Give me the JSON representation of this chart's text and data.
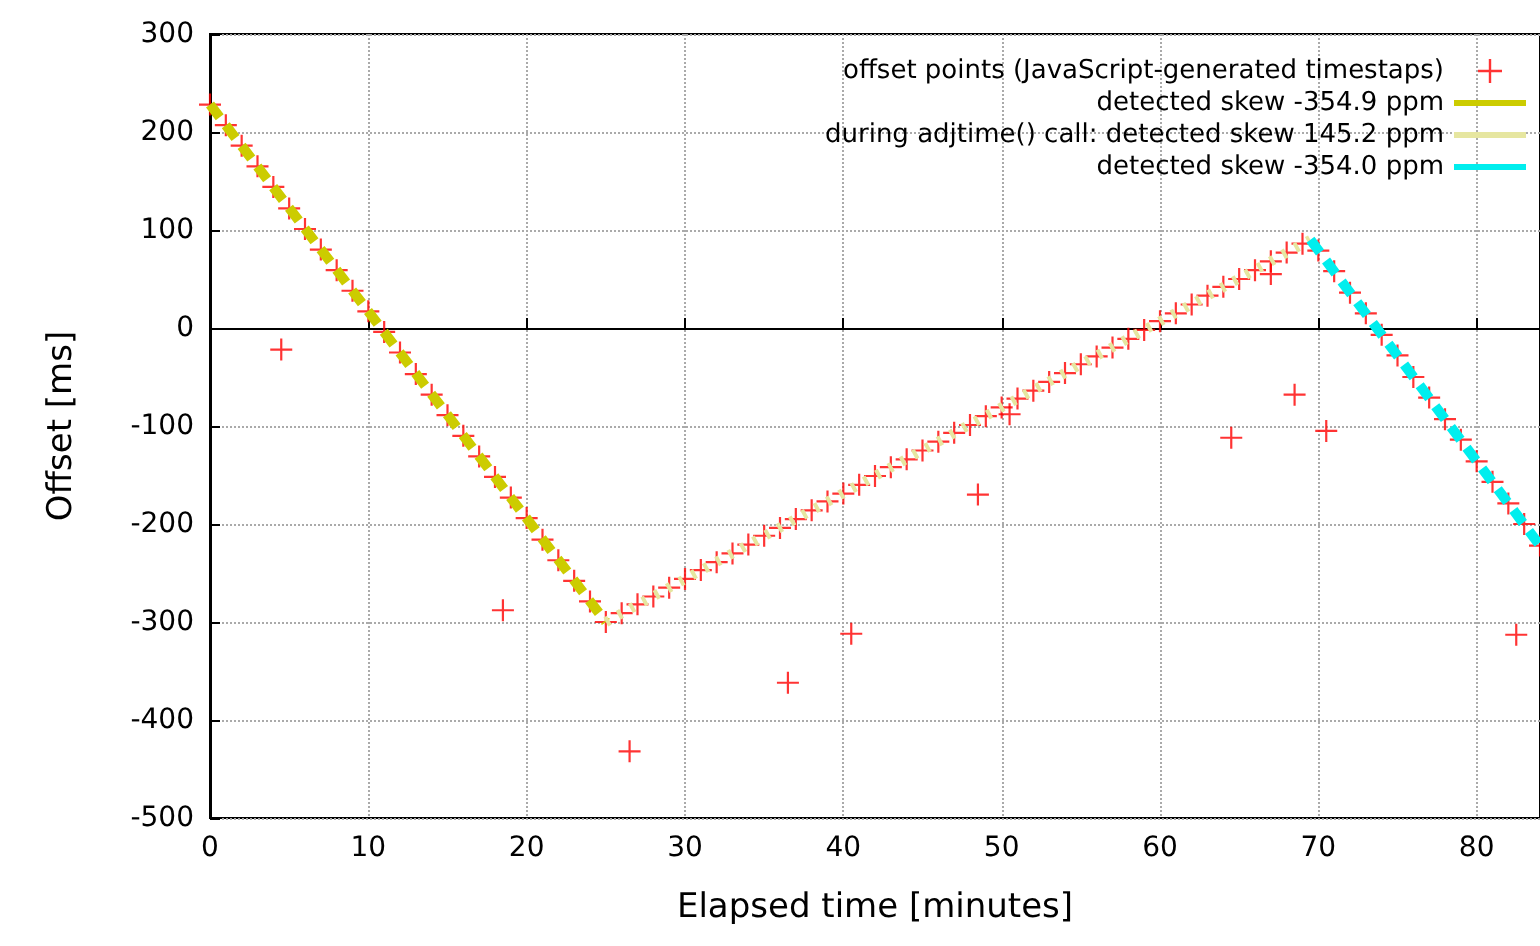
{
  "chart_data": {
    "type": "scatter",
    "xlabel": "Elapsed time [minutes]",
    "ylabel": "Offset [ms]",
    "xlim": [
      0,
      84
    ],
    "xticks": [
      0,
      10,
      20,
      30,
      40,
      50,
      60,
      70,
      80
    ],
    "ylim": [
      -500,
      300
    ],
    "yticks": [
      -500,
      -400,
      -300,
      -200,
      -100,
      0,
      100,
      200,
      300
    ],
    "grid": true,
    "legend": "top right",
    "series": [
      {
        "name": "offset points (JavaScript-generated timestaps)",
        "marker": "cross",
        "color": "#ff0000",
        "x": [
          0,
          1,
          2,
          3,
          4,
          5,
          6,
          7,
          8,
          9,
          10,
          11,
          12,
          13,
          14,
          15,
          16,
          17,
          18,
          19,
          20,
          21,
          22,
          23,
          24,
          25,
          26,
          27,
          28,
          29,
          30,
          31,
          32,
          33,
          34,
          35,
          36,
          37,
          38,
          39,
          40,
          41,
          42,
          43,
          44,
          45,
          46,
          47,
          48,
          49,
          50,
          51,
          52,
          53,
          54,
          55,
          56,
          57,
          58,
          59,
          60,
          61,
          62,
          63,
          64,
          65,
          66,
          67,
          68,
          69,
          70,
          71,
          72,
          73,
          74,
          75,
          76,
          77,
          78,
          79,
          80,
          81,
          82,
          83,
          84,
          4.5,
          18.5,
          26.5,
          36.5,
          40.5,
          48.5,
          50.5,
          64.5,
          67,
          68.5,
          70.5,
          82.5
        ],
        "values": [
          228,
          207,
          186,
          165,
          144,
          122,
          101,
          80,
          59,
          38,
          17,
          -4,
          -25,
          -47,
          -68,
          -89,
          -110,
          -131,
          -152,
          -173,
          -194,
          -216,
          -237,
          -258,
          -279,
          -300,
          -291,
          -282,
          -274,
          -265,
          -256,
          -247,
          -239,
          -230,
          -221,
          -212,
          -204,
          -195,
          -186,
          -177,
          -169,
          -160,
          -151,
          -142,
          -134,
          -125,
          -116,
          -107,
          -99,
          -90,
          -81,
          -72,
          -64,
          -55,
          -46,
          -37,
          -29,
          -20,
          -11,
          -2,
          7,
          15,
          24,
          33,
          42,
          50,
          59,
          68,
          77,
          86,
          79,
          58,
          36,
          15,
          -7,
          -28,
          -50,
          -71,
          -93,
          -114,
          -136,
          -157,
          -179,
          -200,
          -222,
          -22,
          -288,
          -432,
          -362,
          -312,
          -170,
          -88,
          -112,
          55,
          -68,
          -105,
          -313
        ]
      },
      {
        "name": "detected skew -354.9 ppm",
        "type": "line",
        "color": "#cccc00",
        "line_style": "dashed",
        "x": [
          0,
          25
        ],
        "values": [
          228,
          -300
        ]
      },
      {
        "name": "during adjtime() call: detected skew 145.2 ppm",
        "type": "line",
        "color": "#e6e6a0",
        "line_style": "dotted",
        "x": [
          25,
          69.5
        ],
        "values": [
          -300,
          90
        ]
      },
      {
        "name": "detected skew -354.0 ppm",
        "type": "line",
        "color": "#00eeee",
        "line_style": "dashed",
        "x": [
          69.5,
          84
        ],
        "values": [
          90,
          -222
        ]
      }
    ]
  }
}
